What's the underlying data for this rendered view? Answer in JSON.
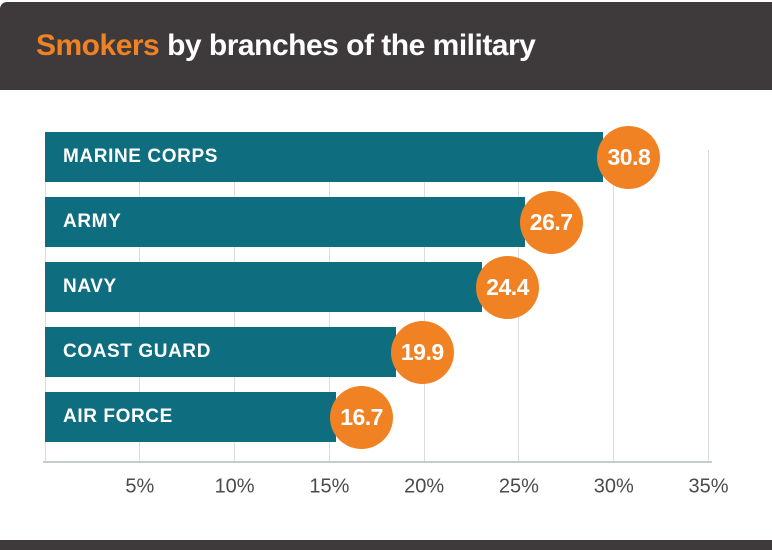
{
  "header": {
    "title_highlight": "Smokers",
    "title_rest": " by branches of the military",
    "bg_color": "#3E3A3B",
    "highlight_color": "#F08223",
    "text_color": "#FFFFFF"
  },
  "chart_data": {
    "type": "bar",
    "orientation": "horizontal",
    "title": "Smokers by branches of the military",
    "categories": [
      "MARINE CORPS",
      "ARMY",
      "NAVY",
      "COAST GUARD",
      "AIR FORCE"
    ],
    "values": [
      30.8,
      26.7,
      24.4,
      19.9,
      16.7
    ],
    "value_unit": "%",
    "xlim": [
      0,
      35
    ],
    "x_ticks": [
      {
        "value": 5,
        "label": "5%"
      },
      {
        "value": 10,
        "label": "10%"
      },
      {
        "value": 15,
        "label": "15%"
      },
      {
        "value": 20,
        "label": "20%"
      },
      {
        "value": 25,
        "label": "25%"
      },
      {
        "value": 30,
        "label": "30%"
      },
      {
        "value": 35,
        "label": "35%"
      }
    ],
    "grid": true,
    "legend": "none",
    "bar_color": "#0E6E80",
    "bar_label_color": "#FFFFFF",
    "badge_color": "#F08223",
    "badge_text_color": "#FFFFFF",
    "grid_color": "#D8DDE0",
    "axis_line_color": "#C5CBCF",
    "tick_label_color": "#4B4B4D"
  },
  "footer": {
    "bg_color": "#3E3A3B"
  }
}
